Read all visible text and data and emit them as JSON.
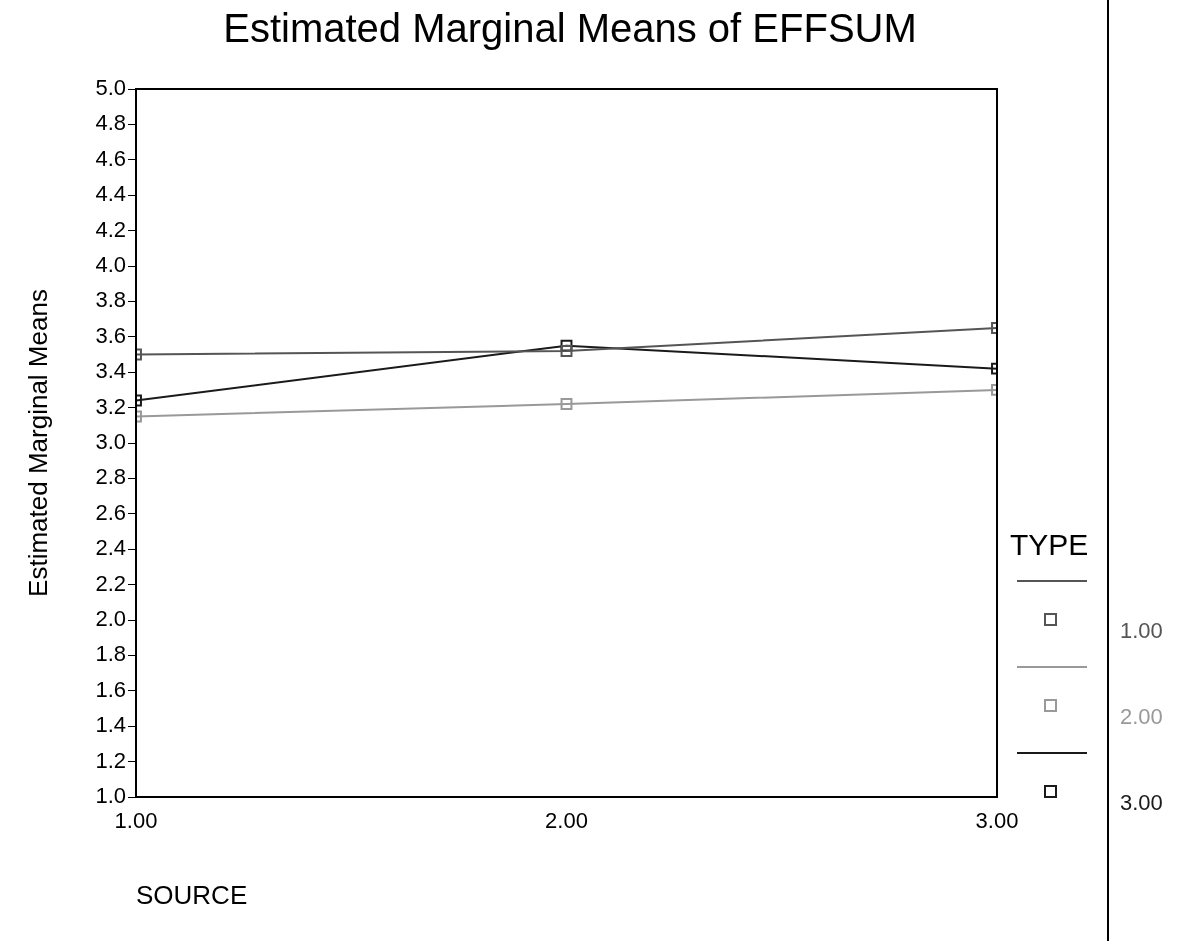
{
  "chart_data": {
    "type": "line",
    "title": "Estimated Marginal Means of EFFSUM",
    "xlabel": "SOURCE",
    "ylabel": "Estimated Marginal Means",
    "legend_title": "TYPE",
    "x": [
      1,
      2,
      3
    ],
    "series": [
      {
        "name": "1.00",
        "color": "#555555",
        "values": [
          3.5,
          3.52,
          3.65
        ]
      },
      {
        "name": "2.00",
        "color": "#999999",
        "values": [
          3.15,
          3.22,
          3.3
        ]
      },
      {
        "name": "3.00",
        "color": "#1a1a1a",
        "values": [
          3.24,
          3.55,
          3.42
        ]
      }
    ],
    "xlim": [
      1,
      3
    ],
    "xticks": [
      {
        "value": 1,
        "label": "1.00"
      },
      {
        "value": 2,
        "label": "2.00"
      },
      {
        "value": 3,
        "label": "3.00"
      }
    ],
    "ylim": [
      1,
      5
    ],
    "yticks": [
      {
        "value": 1,
        "label": "1.0"
      },
      {
        "value": 1.2,
        "label": "1.2"
      },
      {
        "value": 1.4,
        "label": "1.4"
      },
      {
        "value": 1.6,
        "label": "1.6"
      },
      {
        "value": 1.8,
        "label": "1.8"
      },
      {
        "value": 2,
        "label": "2.0"
      },
      {
        "value": 2.2,
        "label": "2.2"
      },
      {
        "value": 2.4,
        "label": "2.4"
      },
      {
        "value": 2.6,
        "label": "2.6"
      },
      {
        "value": 2.8,
        "label": "2.8"
      },
      {
        "value": 3,
        "label": "3.0"
      },
      {
        "value": 3.2,
        "label": "3.2"
      },
      {
        "value": 3.4,
        "label": "3.4"
      },
      {
        "value": 3.6,
        "label": "3.6"
      },
      {
        "value": 3.8,
        "label": "3.8"
      },
      {
        "value": 4,
        "label": "4.0"
      },
      {
        "value": 4.2,
        "label": "4.2"
      },
      {
        "value": 4.4,
        "label": "4.4"
      },
      {
        "value": 4.6,
        "label": "4.6"
      },
      {
        "value": 4.8,
        "label": "4.8"
      },
      {
        "value": 5,
        "label": "5.0"
      }
    ],
    "grid": false,
    "legend": "right",
    "marker": "square",
    "line_style": "solid"
  }
}
